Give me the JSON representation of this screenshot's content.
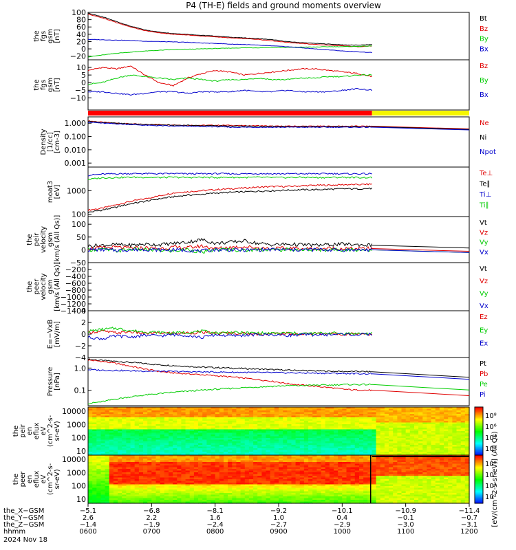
{
  "title": "P4 (TH-E) fields and ground moments overview",
  "colors": {
    "black": "#000000",
    "red": "#e00000",
    "green": "#00cc00",
    "blue": "#0000cc",
    "yellow": "#f5f500",
    "bar_red": "#ff0000"
  },
  "chart_data": [
    {
      "id": "fgs_all",
      "type": "line",
      "ylabel": [
        "the",
        "fgs",
        "gsm",
        "[nT]"
      ],
      "ylim": [
        -30,
        100
      ],
      "yticks": [
        100,
        80,
        60,
        40,
        20,
        0,
        -20
      ],
      "ytick_labels": [
        "100",
        "80",
        "60",
        "40",
        "20",
        "0",
        "−20"
      ],
      "series": [
        {
          "name": "Bt",
          "color": "black",
          "values": [
            98,
            88,
            75,
            62,
            52,
            46,
            42,
            40,
            37,
            35,
            32,
            30,
            28,
            25,
            20,
            17,
            15,
            13,
            11,
            10,
            12
          ]
        },
        {
          "name": "Bz",
          "color": "red",
          "values": [
            95,
            85,
            72,
            60,
            50,
            44,
            40,
            38,
            35,
            33,
            30,
            28,
            26,
            22,
            18,
            15,
            12,
            10,
            8,
            6,
            8
          ]
        },
        {
          "name": "By",
          "color": "green",
          "values": [
            -22,
            -17,
            -12,
            -9,
            -6,
            -4,
            -2,
            -1,
            0,
            1,
            2,
            3,
            3,
            4,
            4,
            5,
            5,
            6,
            6,
            7,
            8
          ]
        },
        {
          "name": "Bx",
          "color": "blue",
          "values": [
            26,
            25,
            24,
            23,
            21,
            20,
            19,
            18,
            16,
            15,
            13,
            12,
            10,
            8,
            6,
            3,
            0,
            -3,
            -6,
            -8,
            -10
          ]
        }
      ]
    },
    {
      "id": "fgs_small",
      "type": "line",
      "ylabel": [
        "the",
        "fgs",
        "gsm",
        "[nT]"
      ],
      "ylim": [
        -18,
        15
      ],
      "yticks": [
        10,
        5,
        0,
        -5,
        -10
      ],
      "ytick_labels": [
        "10",
        "5",
        "0",
        "−5",
        "−10"
      ],
      "series": [
        {
          "name": "Bz",
          "color": "red",
          "values": [
            8,
            10,
            9,
            11,
            5,
            0,
            -2,
            3,
            6,
            8,
            7,
            5,
            6,
            7,
            8,
            9,
            9,
            8,
            7,
            6,
            4
          ]
        },
        {
          "name": "By",
          "color": "green",
          "values": [
            -1,
            0,
            3,
            5,
            4,
            3,
            2,
            3,
            2,
            1,
            2,
            2,
            3,
            2,
            2,
            3,
            3,
            4,
            4,
            5,
            5
          ]
        },
        {
          "name": "Bx",
          "color": "blue",
          "values": [
            -6,
            -6,
            -7,
            -8,
            -7,
            -6,
            -6,
            -7,
            -6,
            -6,
            -6,
            -5,
            -6,
            -6,
            -5,
            -6,
            -6,
            -6,
            -5,
            -4,
            -5
          ]
        }
      ]
    },
    {
      "id": "density",
      "type": "line",
      "yscale": "log",
      "ylabel": [
        "Density",
        "[1/cc]",
        "[cm-3]"
      ],
      "ylim": [
        0.0005,
        3
      ],
      "yticks": [
        1,
        0.1,
        0.01,
        0.001
      ],
      "ytick_labels": [
        "1.000",
        "0.100",
        "0.010",
        "0.001"
      ],
      "series": [
        {
          "name": "Ne",
          "color": "red",
          "values": [
            1.5,
            1.2,
            1.0,
            0.9,
            0.8,
            0.8,
            0.75,
            0.7,
            0.7,
            0.7,
            0.7,
            0.65,
            0.65,
            0.6,
            0.6,
            0.6,
            0.6,
            0.6,
            0.6,
            0.6,
            0.6
          ]
        },
        {
          "name": "Ni",
          "color": "black",
          "values": [
            1.4,
            1.1,
            1.0,
            0.9,
            0.8,
            0.75,
            0.7,
            0.7,
            0.65,
            0.65,
            0.6,
            0.6,
            0.6,
            0.58,
            0.56,
            0.55,
            0.55,
            0.55,
            0.55,
            0.55,
            0.55
          ]
        },
        {
          "name": "Npot",
          "color": "blue",
          "values": [
            1.2,
            1.0,
            0.9,
            0.8,
            0.7,
            0.65,
            0.6,
            0.6,
            0.55,
            0.55,
            0.5,
            0.5,
            0.5,
            0.5,
            0.5,
            0.5,
            0.5,
            0.5,
            0.5,
            0.5,
            0.5
          ]
        }
      ]
    },
    {
      "id": "temperature",
      "type": "line",
      "yscale": "log",
      "ylabel": [
        "moat3",
        "[eV]"
      ],
      "ylim": [
        80,
        10000
      ],
      "yticks": [
        1000,
        100
      ],
      "ytick_labels": [
        "1000",
        "100"
      ],
      "series": [
        {
          "name": "Te⊥",
          "color": "red",
          "values": [
            150,
            180,
            250,
            350,
            450,
            600,
            800,
            900,
            1000,
            1100,
            1200,
            1300,
            1400,
            1500,
            1500,
            1600,
            1700,
            1700,
            1800,
            1800,
            1900
          ]
        },
        {
          "name": "Te∥",
          "color": "black",
          "values": [
            120,
            150,
            200,
            280,
            350,
            450,
            550,
            650,
            700,
            800,
            850,
            900,
            950,
            1000,
            1050,
            1100,
            1100,
            1150,
            1200,
            1200,
            1250
          ]
        },
        {
          "name": "Ti⊥",
          "color": "blue",
          "values": [
            4500,
            5000,
            5200,
            5300,
            5300,
            5200,
            5300,
            5200,
            5200,
            5300,
            5200,
            5200,
            5300,
            5200,
            5200,
            5200,
            5200,
            5300,
            5200,
            5200,
            5200
          ]
        },
        {
          "name": "Ti∥",
          "color": "green",
          "values": [
            3000,
            3500,
            3600,
            3700,
            3700,
            3600,
            3700,
            3600,
            3700,
            3600,
            3700,
            3600,
            3700,
            3600,
            3600,
            3700,
            3600,
            3600,
            3700,
            3600,
            3600
          ]
        }
      ]
    },
    {
      "id": "peir_velocity",
      "type": "line",
      "ylabel": [
        "the",
        "peir",
        "velocity",
        "gsm",
        "[km/s (All Qs)]"
      ],
      "ylim": [
        -50,
        130
      ],
      "yticks": [
        100,
        50,
        0,
        -50
      ],
      "ytick_labels": [
        "100",
        "50",
        "0",
        "−50"
      ],
      "series": [
        {
          "name": "Vt",
          "color": "black",
          "values": [
            15,
            18,
            20,
            18,
            22,
            20,
            25,
            30,
            40,
            25,
            30,
            35,
            25,
            20,
            22,
            20,
            18,
            20,
            22,
            20,
            18
          ]
        },
        {
          "name": "Vz",
          "color": "red",
          "values": [
            5,
            8,
            10,
            6,
            8,
            5,
            10,
            8,
            15,
            5,
            10,
            12,
            8,
            5,
            6,
            5,
            4,
            6,
            5,
            4,
            5
          ]
        },
        {
          "name": "Vy",
          "color": "green",
          "values": [
            0,
            2,
            -5,
            3,
            0,
            -2,
            -5,
            2,
            -10,
            0,
            2,
            -3,
            2,
            0,
            1,
            0,
            -1,
            0,
            1,
            0,
            0
          ]
        },
        {
          "name": "Vx",
          "color": "blue",
          "values": [
            0,
            1,
            -2,
            0,
            2,
            -1,
            0,
            -2,
            -5,
            1,
            0,
            -1,
            0,
            1,
            0,
            0,
            1,
            0,
            -1,
            0,
            0
          ]
        }
      ]
    },
    {
      "id": "peer_velocity",
      "type": "line",
      "ylabel": [
        "the",
        "peer",
        "velocity",
        "gsm",
        "[km/s (All Qs)]"
      ],
      "ylim": [
        -1400,
        0
      ],
      "yticks": [
        -200,
        -400,
        -600,
        -800,
        -1000,
        -1200,
        -1400
      ],
      "ytick_labels": [
        "−200",
        "−400",
        "−600",
        "−800",
        "−1000",
        "−1200",
        "−1400"
      ],
      "series": []
    },
    {
      "id": "efield",
      "type": "line",
      "ylabel": [
        "E=−VxB",
        "[mV/m]"
      ],
      "ylim": [
        -4,
        4
      ],
      "yticks": [
        4,
        2,
        0,
        -2,
        -4
      ],
      "ytick_labels": [
        "4",
        "2",
        "0",
        "−2",
        "−4"
      ],
      "series": [
        {
          "name": "Ez",
          "color": "red",
          "values": [
            0.3,
            0.5,
            0.2,
            0.4,
            0.1,
            0.2,
            0.1,
            0.2,
            0.3,
            0.1,
            0.2,
            0.1,
            0.0,
            0.1,
            0.1,
            0.0,
            0.1,
            0.1,
            0.0,
            0.1,
            0.0
          ]
        },
        {
          "name": "Ey",
          "color": "green",
          "values": [
            0.5,
            0.8,
            1.0,
            0.6,
            0.4,
            0.3,
            0.2,
            0.3,
            0.5,
            0.2,
            0.3,
            0.2,
            0.2,
            0.1,
            0.2,
            0.1,
            0.1,
            0.2,
            0.1,
            0.1,
            0.1
          ]
        },
        {
          "name": "Ex",
          "color": "blue",
          "values": [
            -0.5,
            -0.8,
            -0.3,
            -0.5,
            -0.2,
            -0.3,
            -0.1,
            -0.2,
            -0.6,
            -0.1,
            -0.3,
            -0.2,
            -0.1,
            -0.1,
            -0.2,
            -0.1,
            -0.1,
            -0.1,
            0.0,
            -0.1,
            0.0
          ]
        }
      ]
    },
    {
      "id": "pressure",
      "type": "line",
      "yscale": "log",
      "ylabel": [
        "Pressure",
        "[nPa]"
      ],
      "ylim": [
        0.02,
        3
      ],
      "yticks": [
        1,
        0.1
      ],
      "ytick_labels": [
        "1.0",
        "0.1"
      ],
      "series": [
        {
          "name": "Pt",
          "color": "black",
          "values": [
            2.5,
            2.2,
            2.0,
            1.8,
            1.6,
            1.4,
            1.3,
            1.2,
            1.1,
            1.05,
            1.0,
            0.95,
            0.9,
            0.85,
            0.8,
            0.78,
            0.75,
            0.72,
            0.7,
            0.7,
            0.68
          ]
        },
        {
          "name": "Pb",
          "color": "red",
          "values": [
            2.3,
            2.0,
            1.6,
            1.2,
            0.9,
            0.7,
            0.6,
            0.55,
            0.5,
            0.45,
            0.4,
            0.35,
            0.3,
            0.25,
            0.2,
            0.17,
            0.15,
            0.13,
            0.11,
            0.1,
            0.1
          ]
        },
        {
          "name": "Pe",
          "color": "green",
          "values": [
            0.025,
            0.03,
            0.04,
            0.05,
            0.06,
            0.07,
            0.08,
            0.09,
            0.1,
            0.11,
            0.12,
            0.13,
            0.14,
            0.15,
            0.16,
            0.16,
            0.17,
            0.17,
            0.18,
            0.18,
            0.18
          ]
        },
        {
          "name": "Pi",
          "color": "blue",
          "values": [
            0.85,
            0.8,
            0.78,
            0.75,
            0.73,
            0.72,
            0.7,
            0.68,
            0.67,
            0.66,
            0.65,
            0.64,
            0.63,
            0.62,
            0.61,
            0.6,
            0.59,
            0.58,
            0.57,
            0.56,
            0.55
          ]
        }
      ]
    },
    {
      "id": "peir_spec",
      "type": "heatmap",
      "ylabel": [
        "the",
        "peir",
        "en",
        "eflux",
        "eV",
        "(cm^2-s-",
        "sr-eV)"
      ],
      "yscale": "log",
      "ylim": [
        5,
        20000
      ],
      "yticks": [
        10000,
        1000,
        100,
        10
      ],
      "ytick_labels": [
        "10000",
        "1000",
        "100",
        "10"
      ],
      "colorbar_labels": [
        "10⁸",
        "10⁶",
        "10⁴",
        "10²"
      ]
    },
    {
      "id": "peer_spec",
      "type": "heatmap",
      "ylabel": [
        "the",
        "peer",
        "en",
        "eflux",
        "eV",
        "(cm^2-s-",
        "sr-eV)"
      ],
      "yscale": "log",
      "ylim": [
        5,
        20000
      ],
      "yticks": [
        10000,
        1000,
        100,
        10
      ],
      "ytick_labels": [
        "10000",
        "1000",
        "100",
        "10"
      ],
      "colorbar_labels": [
        "10⁸",
        "10⁶",
        "10⁴",
        "10²"
      ]
    }
  ],
  "colorbar_title": "[eV/(cm^2-s-sr-eV)] (All Qs)",
  "x_axis": {
    "rows": [
      {
        "label": "the_X−GSM",
        "values": [
          "−5.1",
          "−6.8",
          "−8.1",
          "−9.2",
          "−10.1",
          "−10.9",
          "−11.4"
        ]
      },
      {
        "label": "the_Y−GSM",
        "values": [
          "2.6",
          "2.2",
          "1.6",
          "1.0",
          "0.4",
          "−0.1",
          "−0.7"
        ]
      },
      {
        "label": "the_Z−GSM",
        "values": [
          "−1.4",
          "−1.9",
          "−2.4",
          "−2.7",
          "−2.9",
          "−3.0",
          "−3.1"
        ]
      },
      {
        "label": "hhmm",
        "values": [
          "0600",
          "0700",
          "0800",
          "0900",
          "1000",
          "1100",
          "1200"
        ]
      }
    ],
    "date": "2024 Nov 18"
  }
}
